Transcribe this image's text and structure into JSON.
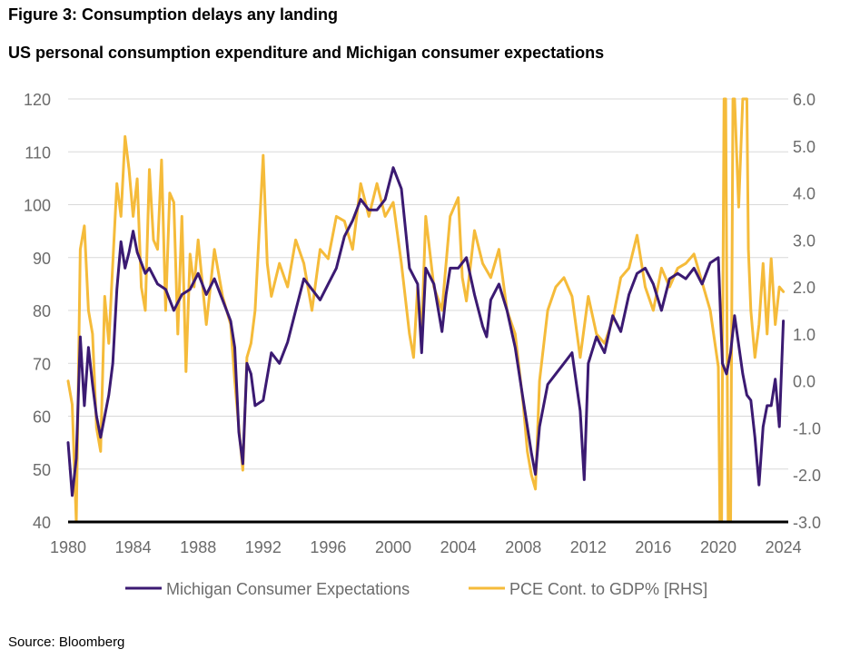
{
  "figure": {
    "title": "Figure 3: Consumption delays any landing",
    "subtitle": "US personal consumption expenditure and Michigan consumer expectations",
    "source": "Source: Bloomberg"
  },
  "chart_data": {
    "type": "line",
    "title": "US personal consumption expenditure and Michigan consumer expectations",
    "grid": true,
    "legend_position": "bottom",
    "x_ticks": [
      "1980",
      "1984",
      "1988",
      "1992",
      "1996",
      "2000",
      "2004",
      "2008",
      "2012",
      "2016",
      "2020",
      "2024"
    ],
    "xlim": [
      1980,
      2024.3
    ],
    "y_left": {
      "lim": [
        40,
        120
      ],
      "ticks": [
        "40",
        "50",
        "60",
        "70",
        "80",
        "90",
        "100",
        "110",
        "120"
      ]
    },
    "y_right": {
      "lim": [
        -3,
        6
      ],
      "ticks": [
        "-3.0",
        "-2.0",
        "-1.0",
        "0.0",
        "1.0",
        "2.0",
        "3.0",
        "4.0",
        "5.0",
        "6.0"
      ]
    },
    "series": [
      {
        "name": "Michigan Consumer Expectations",
        "axis": "left",
        "color": "#3b1a72",
        "x": [
          1980.0,
          1980.25,
          1980.5,
          1980.75,
          1981.0,
          1981.25,
          1981.5,
          1981.75,
          1982.0,
          1982.25,
          1982.5,
          1982.75,
          1983.0,
          1983.25,
          1983.5,
          1983.75,
          1984.0,
          1984.25,
          1984.5,
          1984.75,
          1985.0,
          1985.5,
          1986.0,
          1986.5,
          1987.0,
          1987.5,
          1988.0,
          1988.5,
          1989.0,
          1989.5,
          1990.0,
          1990.25,
          1990.5,
          1990.75,
          1991.0,
          1991.25,
          1991.5,
          1992.0,
          1992.5,
          1993.0,
          1993.5,
          1994.0,
          1994.5,
          1995.0,
          1995.5,
          1996.0,
          1996.5,
          1997.0,
          1997.5,
          1998.0,
          1998.5,
          1999.0,
          1999.5,
          2000.0,
          2000.5,
          2001.0,
          2001.5,
          2001.75,
          2002.0,
          2002.5,
          2003.0,
          2003.25,
          2003.5,
          2004.0,
          2004.5,
          2005.0,
          2005.5,
          2005.75,
          2006.0,
          2006.5,
          2007.0,
          2007.5,
          2008.0,
          2008.25,
          2008.5,
          2008.75,
          2009.0,
          2009.5,
          2010.0,
          2010.5,
          2011.0,
          2011.5,
          2011.75,
          2012.0,
          2012.5,
          2013.0,
          2013.5,
          2014.0,
          2014.5,
          2015.0,
          2015.5,
          2016.0,
          2016.5,
          2017.0,
          2017.5,
          2018.0,
          2018.5,
          2019.0,
          2019.5,
          2020.0,
          2020.25,
          2020.5,
          2020.75,
          2021.0,
          2021.5,
          2021.75,
          2022.0,
          2022.25,
          2022.5,
          2022.75,
          2023.0,
          2023.25,
          2023.5,
          2023.75,
          2024.0
        ],
        "values": [
          55,
          45,
          52,
          75,
          62,
          73,
          66,
          60,
          56,
          60,
          64,
          70,
          84,
          93,
          88,
          91,
          95,
          91,
          89,
          87,
          88,
          85,
          84,
          80,
          83,
          84,
          87,
          83,
          86,
          82,
          78,
          73,
          57,
          51,
          70,
          68,
          62,
          63,
          72,
          70,
          74,
          80,
          86,
          84,
          82,
          85,
          88,
          94,
          97,
          101,
          99,
          99,
          101,
          107,
          103,
          88,
          85,
          72,
          88,
          85,
          76,
          83,
          88,
          88,
          90,
          83,
          77,
          75,
          82,
          85,
          80,
          73,
          63,
          58,
          53,
          49,
          58,
          66,
          68,
          70,
          72,
          61,
          48,
          70,
          75,
          72,
          79,
          76,
          83,
          87,
          88,
          85,
          80,
          86,
          87,
          86,
          88,
          85,
          89,
          90,
          70,
          68,
          72,
          79,
          68,
          64,
          63,
          56,
          47,
          58,
          62,
          62,
          67,
          58,
          78
        ]
      },
      {
        "name": "PCE Cont. to GDP% [RHS]",
        "axis": "right",
        "color": "#f5bb3a",
        "x": [
          1980.0,
          1980.25,
          1980.5,
          1980.75,
          1981.0,
          1981.25,
          1981.5,
          1981.75,
          1982.0,
          1982.25,
          1982.5,
          1982.75,
          1983.0,
          1983.25,
          1983.5,
          1983.75,
          1984.0,
          1984.25,
          1984.5,
          1984.75,
          1985.0,
          1985.25,
          1985.5,
          1985.75,
          1986.0,
          1986.25,
          1986.5,
          1986.75,
          1987.0,
          1987.25,
          1987.5,
          1987.75,
          1988.0,
          1988.5,
          1989.0,
          1989.5,
          1990.0,
          1990.25,
          1990.5,
          1990.75,
          1991.0,
          1991.25,
          1991.5,
          1992.0,
          1992.25,
          1992.5,
          1993.0,
          1993.5,
          1994.0,
          1994.5,
          1995.0,
          1995.5,
          1996.0,
          1996.5,
          1997.0,
          1997.5,
          1998.0,
          1998.5,
          1999.0,
          1999.5,
          2000.0,
          2000.5,
          2001.0,
          2001.25,
          2001.5,
          2001.75,
          2002.0,
          2002.5,
          2003.0,
          2003.5,
          2004.0,
          2004.25,
          2004.5,
          2005.0,
          2005.5,
          2006.0,
          2006.5,
          2007.0,
          2007.5,
          2008.0,
          2008.25,
          2008.5,
          2008.75,
          2009.0,
          2009.5,
          2010.0,
          2010.5,
          2011.0,
          2011.5,
          2012.0,
          2012.5,
          2013.0,
          2013.5,
          2014.0,
          2014.5,
          2015.0,
          2015.5,
          2016.0,
          2016.5,
          2017.0,
          2017.5,
          2018.0,
          2018.5,
          2019.0,
          2019.5,
          2020.0,
          2020.1,
          2020.2,
          2020.35,
          2020.45,
          2020.6,
          2020.75,
          2020.9,
          2021.0,
          2021.25,
          2021.5,
          2021.75,
          2021.85,
          2022.0,
          2022.25,
          2022.5,
          2022.75,
          2023.0,
          2023.25,
          2023.5,
          2023.75,
          2024.0
        ],
        "values": [
          0.0,
          -0.5,
          -3.0,
          2.8,
          3.3,
          1.5,
          1.0,
          -1.0,
          -1.5,
          1.8,
          0.8,
          2.5,
          4.2,
          3.5,
          5.2,
          4.5,
          3.5,
          4.3,
          2.0,
          1.5,
          4.5,
          3.0,
          2.8,
          4.7,
          1.5,
          4.0,
          3.8,
          1.0,
          3.5,
          0.2,
          2.7,
          2.0,
          3.0,
          1.2,
          2.8,
          1.8,
          1.2,
          0.0,
          -1.0,
          -1.9,
          0.5,
          0.8,
          1.5,
          4.8,
          2.5,
          1.8,
          2.5,
          2.0,
          3.0,
          2.5,
          1.5,
          2.8,
          2.6,
          3.5,
          3.4,
          2.8,
          4.2,
          3.5,
          4.2,
          3.5,
          3.8,
          2.5,
          1.0,
          0.5,
          2.0,
          1.0,
          3.5,
          2.0,
          1.5,
          3.5,
          3.9,
          2.2,
          1.7,
          3.2,
          2.5,
          2.2,
          2.8,
          1.5,
          1.0,
          -0.5,
          -1.5,
          -2.0,
          -2.3,
          0.0,
          1.5,
          2.0,
          2.2,
          1.8,
          0.5,
          1.8,
          1.0,
          0.8,
          1.3,
          2.2,
          2.4,
          3.1,
          2.0,
          1.5,
          2.4,
          2.0,
          2.4,
          2.5,
          2.7,
          2.1,
          1.5,
          0.3,
          -3.0,
          -3.0,
          6.0,
          6.0,
          -3.0,
          -3.0,
          6.0,
          6.0,
          3.7,
          6.0,
          6.0,
          2.8,
          1.5,
          0.5,
          1.2,
          2.5,
          1.0,
          2.6,
          1.2,
          2.0,
          1.9
        ]
      }
    ]
  },
  "legend": {
    "items": [
      "Michigan Consumer Expectations",
      "PCE Cont. to GDP% [RHS]"
    ]
  }
}
